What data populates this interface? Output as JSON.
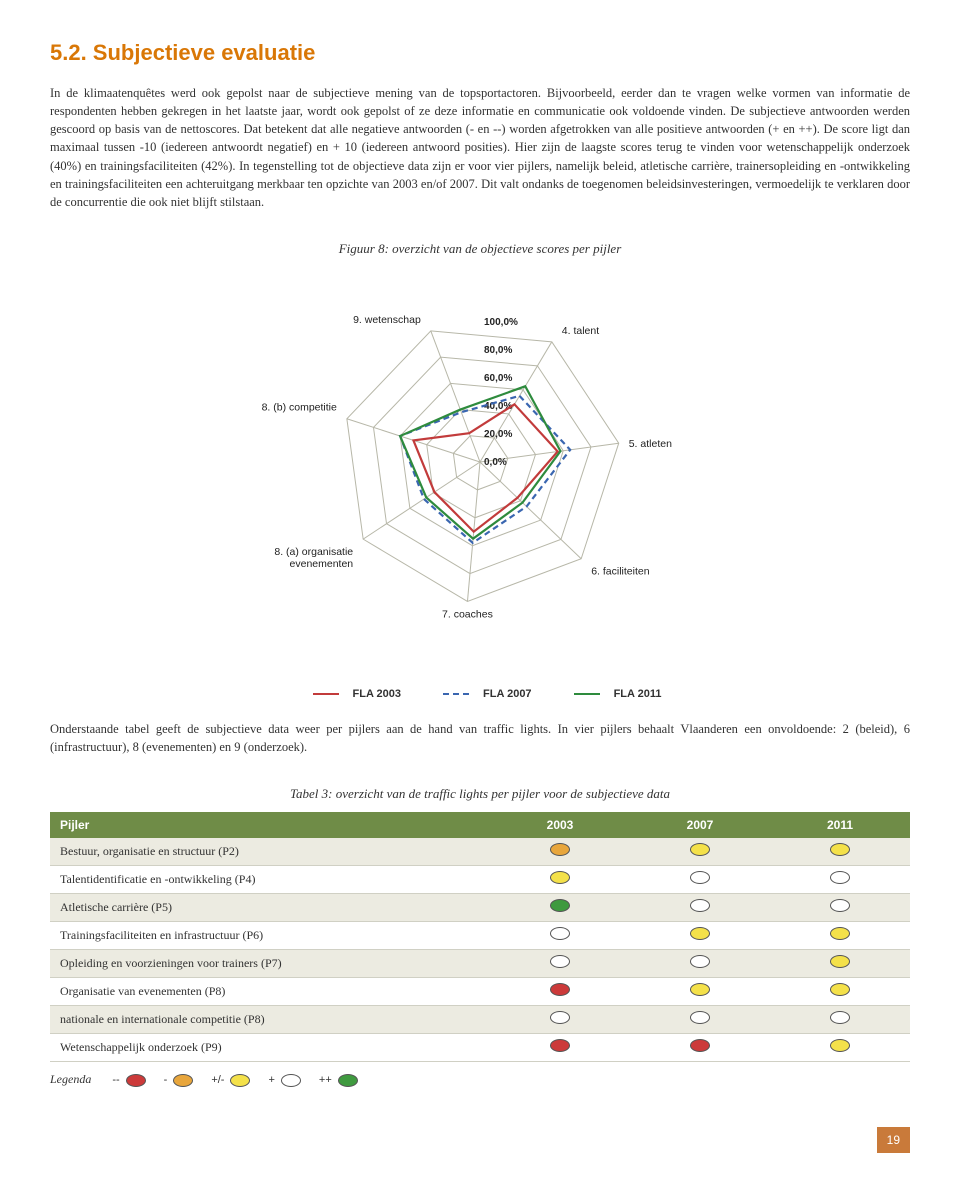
{
  "heading": "5.2. Subjectieve evaluatie",
  "para1": "In de klimaatenquêtes werd ook gepolst naar de subjectieve mening van de topsportactoren. Bijvoorbeeld, eerder dan te vragen welke vormen van informatie de respondenten hebben gekregen in het laatste jaar, wordt ook gepolst of ze deze informatie en communicatie ook voldoende vinden. De subjectieve antwoorden werden gescoord op basis van de nettoscores. Dat betekent dat alle negatieve antwoorden (- en --) worden afgetrokken van alle positieve antwoorden (+ en ++). De score ligt dan maximaal tussen -10 (iedereen antwoordt negatief) en + 10 (iedereen antwoord posities). Hier zijn de laagste scores terug te vinden voor wetenschappelijk onderzoek (40%) en trainingsfaciliteiten (42%). In tegenstelling tot de objectieve data zijn er voor vier pijlers, namelijk beleid, atletische carrière, trainersopleiding en -ontwikkeling en trainingsfaciliteiten een achteruitgang merkbaar ten opzichte van 2003 en/of 2007. Dit valt ondanks de toegenomen beleidsinvesteringen, vermoedelijk te verklaren door de concurrentie die ook niet blijft stilstaan.",
  "radar": {
    "title": "Figuur 8: overzicht van de objectieve scores per pijler",
    "ring_labels": [
      "100,0%",
      "80,0%",
      "60,0%",
      "40,0%",
      "20,0%",
      "0,0%"
    ],
    "ring_values": [
      100,
      80,
      60,
      40,
      20,
      0
    ],
    "axes": [
      "4. talent",
      "5. atleten",
      "6. faciliteiten",
      "7. coaches",
      "8. (a) organisatie evenementen",
      "8. (b) competitie",
      "9. wetenschap"
    ],
    "series": [
      {
        "name": "FLA 2003",
        "color": "#c23b3b",
        "dash": "0",
        "values": [
          48,
          56,
          37,
          50,
          39,
          50,
          22
        ]
      },
      {
        "name": "FLA 2007",
        "color": "#3a66b0",
        "dash": "6 4",
        "values": [
          55,
          65,
          46,
          58,
          48,
          60,
          38
        ]
      },
      {
        "name": "FLA 2011",
        "color": "#2e8b3d",
        "dash": "0",
        "values": [
          63,
          58,
          42,
          55,
          46,
          60,
          40
        ]
      }
    ],
    "grid_color": "#b7b7a8",
    "background": "#ffffff"
  },
  "para2": "Onderstaande tabel geeft de subjectieve data weer per pijlers aan de hand van traffic lights. In vier pijlers behaalt Vlaanderen een onvoldoende: 2 (beleid), 6 (infrastructuur), 8 (evenementen) en 9 (onderzoek).",
  "table": {
    "title": "Tabel 3: overzicht van de traffic lights per pijler voor de subjectieve data",
    "headers": [
      "Pijler",
      "2003",
      "2007",
      "2011"
    ],
    "colors": {
      "red": "#cc3a3a",
      "orange": "#e8a63c",
      "yellow": "#f4e14a",
      "white": "#ffffff",
      "green": "#3f9a3f"
    },
    "rows": [
      {
        "label": "Bestuur, organisatie en structuur (P2)",
        "cells": [
          "orange",
          "yellow",
          "yellow"
        ]
      },
      {
        "label": "Talentidentificatie en -ontwikkeling (P4)",
        "cells": [
          "yellow",
          "white",
          "white"
        ]
      },
      {
        "label": "Atletische carrière (P5)",
        "cells": [
          "green",
          "white",
          "white"
        ]
      },
      {
        "label": "Trainingsfaciliteiten en infrastructuur (P6)",
        "cells": [
          "white",
          "yellow",
          "yellow"
        ]
      },
      {
        "label": "Opleiding en voorzieningen voor trainers (P7)",
        "cells": [
          "white",
          "white",
          "yellow"
        ]
      },
      {
        "label": "Organisatie van evenementen (P8)",
        "cells": [
          "red",
          "yellow",
          "yellow"
        ]
      },
      {
        "label": "nationale en internationale competitie (P8)",
        "cells": [
          "white",
          "white",
          "white"
        ]
      },
      {
        "label": "Wetenschappelijk onderzoek (P9)",
        "cells": [
          "red",
          "red",
          "yellow"
        ]
      }
    ],
    "legenda_label": "Legenda",
    "legenda": [
      {
        "sym": "--",
        "key": "red"
      },
      {
        "sym": "-",
        "key": "orange"
      },
      {
        "sym": "+/-",
        "key": "yellow"
      },
      {
        "sym": "+",
        "key": "white"
      },
      {
        "sym": "++",
        "key": "green"
      }
    ]
  },
  "page_number": "19"
}
